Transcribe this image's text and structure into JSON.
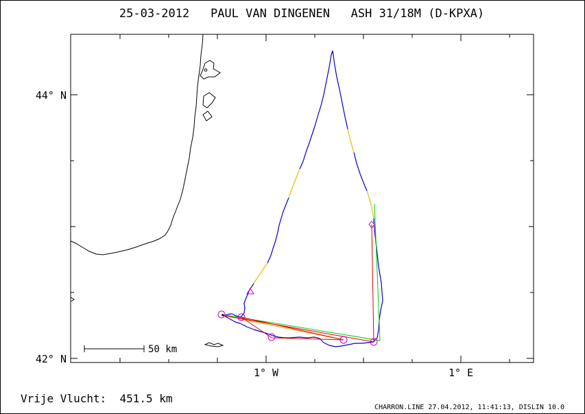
{
  "header": {
    "title": "25-03-2012   PAUL VAN DINGENEN   ASH 31/18M (D-KPXA)"
  },
  "axes": {
    "lat_labels": [
      "44° N",
      "42° N"
    ],
    "lon_labels": [
      "1° W",
      "1° E"
    ]
  },
  "scale_bar": {
    "label": "50 km"
  },
  "footer": {
    "summary": "Vrije Vlucht:  451.5 km",
    "credits": "CHARRON.LINE 27.04.2012, 11:41:13, DISLIN 10.0"
  },
  "colors": {
    "track": "#0000cc",
    "track_segment": "#ffdd00",
    "route_red": "#dd0000",
    "route_green": "#00cc00",
    "route_orange": "#ff9900",
    "waypoint": "#cc00cc",
    "coastline": "#000000"
  },
  "waypoint_symbols": [
    "circle",
    "circle",
    "circle",
    "circle",
    "circle",
    "triangle",
    "diamond"
  ]
}
